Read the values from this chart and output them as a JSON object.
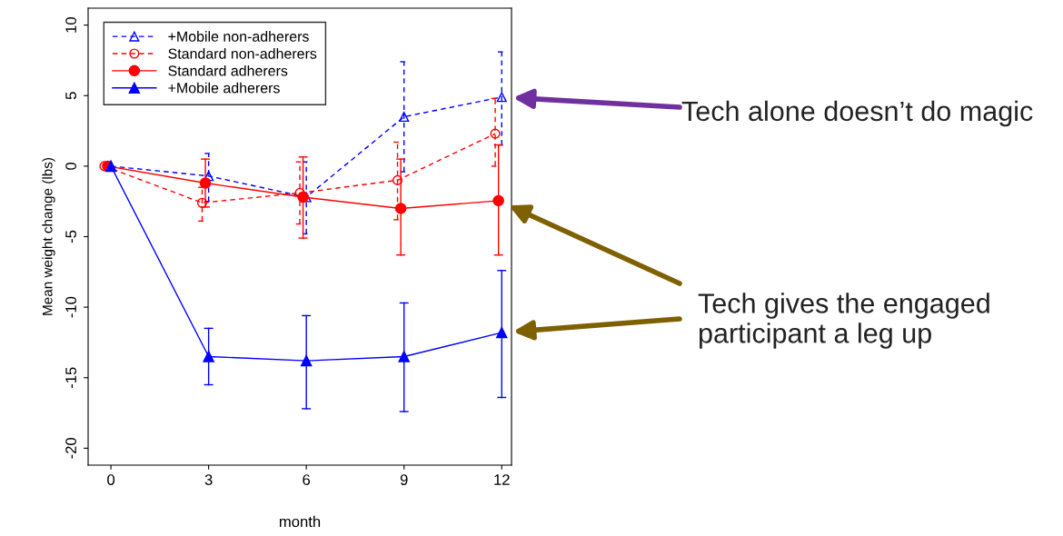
{
  "chart_data": {
    "type": "line",
    "xlabel": "month",
    "ylabel": "Mean weight change (lbs)",
    "xlim": [
      -0.7,
      12.3
    ],
    "xticks": [
      0,
      3,
      6,
      9,
      12
    ],
    "ylim": [
      -21.2,
      11.2
    ],
    "yticks": [
      -20,
      -15,
      -10,
      -5,
      0,
      5,
      10
    ],
    "grid": false,
    "legend": "top left",
    "series": [
      {
        "name": "+Mobile non-adherers",
        "color": "#0000ff",
        "marker": "triangle",
        "line_style": "dashed",
        "x": [
          0,
          3,
          6,
          9,
          12
        ],
        "values": [
          0,
          -0.7,
          -2.2,
          3.5,
          4.9
        ],
        "errors": [
          null,
          [
            -2.5,
            0.9
          ],
          [
            -4.8,
            0.3
          ],
          [
            -0.4,
            7.4
          ],
          [
            1.5,
            8.1
          ]
        ]
      },
      {
        "name": "Standard non-adherers",
        "color": "#ff0000",
        "marker": "circle",
        "line_style": "dashed",
        "x": [
          -0.2,
          2.8,
          5.8,
          8.8,
          11.8
        ],
        "values": [
          0,
          -2.6,
          -1.9,
          -1.0,
          2.3
        ],
        "errors": [
          null,
          [
            -3.9,
            -1.5
          ],
          [
            -4.1,
            0.3
          ],
          [
            -3.8,
            1.7
          ],
          [
            0,
            4.8
          ]
        ]
      },
      {
        "name": "Standard adherers",
        "color": "#ff0000",
        "marker": "circle",
        "line_style": "solid",
        "x": [
          -0.1,
          2.9,
          5.9,
          8.9,
          11.9
        ],
        "values": [
          0,
          -1.2,
          -2.2,
          -3.0,
          -2.45
        ],
        "errors": [
          null,
          [
            -2.9,
            0.5
          ],
          [
            -5.1,
            0.65
          ],
          [
            -6.3,
            0.5
          ],
          [
            -6.3,
            1.5
          ]
        ]
      },
      {
        "name": "+Mobile adherers",
        "color": "#0000ff",
        "marker": "triangle",
        "line_style": "solid",
        "x": [
          0,
          3,
          6,
          9,
          12
        ],
        "values": [
          0,
          -13.5,
          -13.8,
          -13.5,
          -11.8
        ],
        "errors": [
          null,
          [
            -15.5,
            -11.5
          ],
          [
            -17.2,
            -10.6
          ],
          [
            -17.4,
            -9.7
          ],
          [
            -16.4,
            -7.4
          ]
        ]
      }
    ],
    "annotations": [
      "Tech alone doesn’t do magic",
      "Tech gives the engaged\nparticipant a leg up"
    ]
  }
}
